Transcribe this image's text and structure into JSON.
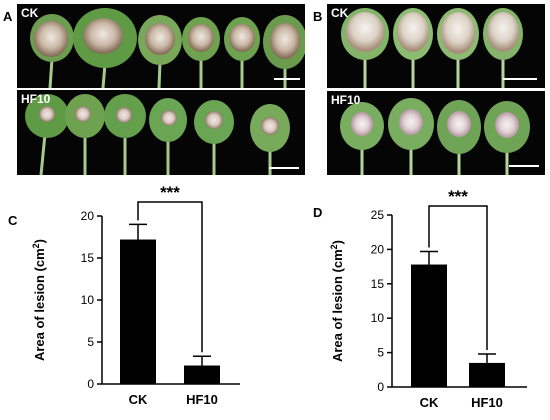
{
  "figure": {
    "panels": {
      "A": {
        "letter": "A"
      },
      "B": {
        "letter": "B"
      },
      "C": {
        "letter": "C"
      },
      "D": {
        "letter": "D"
      }
    },
    "photos": {
      "A_top": {
        "label": "CK",
        "leaf_count": 6
      },
      "A_bottom": {
        "label": "HF10",
        "leaf_count": 6
      },
      "B_top": {
        "label": "CK",
        "leaf_count": 4
      },
      "B_bottom": {
        "label": "HF10",
        "leaf_count": 4
      }
    },
    "colors": {
      "photo_background": "#050505",
      "leaf_green": "#5f9a45",
      "leaf_light": "#8fc070",
      "lesion_light": "#e4dcd2",
      "lesion_brown": "#8a6a55",
      "bar": "#000000"
    }
  },
  "chart_data": [
    {
      "panel": "C",
      "type": "bar",
      "categories": [
        "CK",
        "HF10"
      ],
      "values": [
        17.2,
        2.2
      ],
      "errors": [
        1.8,
        1.1
      ],
      "ylabel": "Area of lesion (cm2)",
      "ylabel_main": "Area of lesion (cm",
      "ylabel_sup": "2",
      "ylabel_close": ")",
      "ylim": [
        0,
        20
      ],
      "yticks": [
        "0",
        "5",
        "10",
        "15",
        "20"
      ],
      "significance": "***"
    },
    {
      "panel": "D",
      "type": "bar",
      "categories": [
        "CK",
        "HF10"
      ],
      "values": [
        17.8,
        3.5
      ],
      "errors": [
        1.9,
        1.3
      ],
      "ylabel": "Area of lesion (cm2)",
      "ylabel_main": "Area of lesion (cm",
      "ylabel_sup": "2",
      "ylabel_close": ")",
      "ylim": [
        0,
        25
      ],
      "yticks": [
        "0",
        "5",
        "10",
        "15",
        "20",
        "25"
      ],
      "significance": "***"
    }
  ]
}
